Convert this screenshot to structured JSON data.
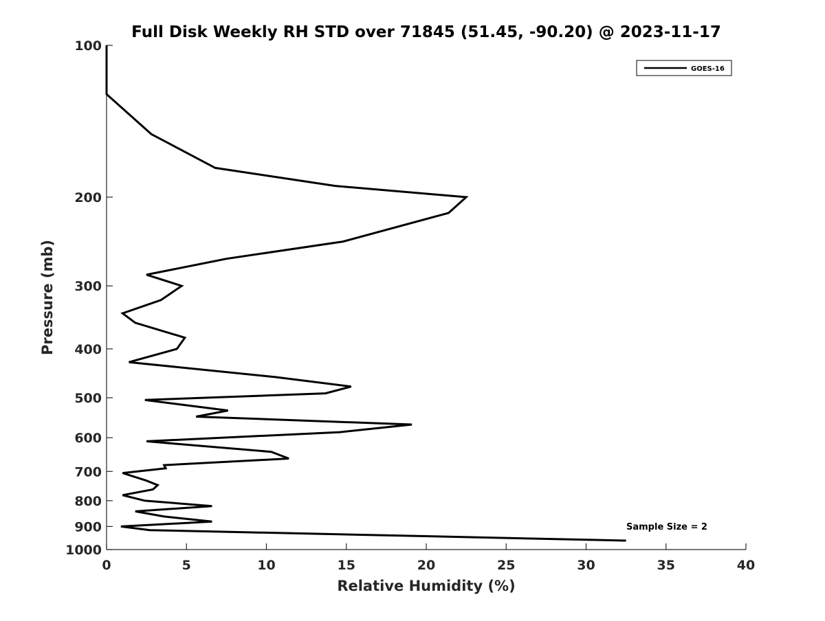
{
  "chart_data": {
    "type": "line",
    "title": "Full Disk Weekly RH STD over 71845 (51.45, -90.20) @ 2023-11-17",
    "xlabel": "Relative Humidity (%)",
    "ylabel": "Pressure (mb)",
    "xlim": [
      0,
      40
    ],
    "ylim": [
      100,
      1000
    ],
    "yscale": "log",
    "yreversed": true,
    "grid": false,
    "legend_position": "top-right",
    "xticks": [
      0,
      5,
      10,
      15,
      20,
      25,
      30,
      35,
      40
    ],
    "yticks": [
      100,
      200,
      300,
      400,
      500,
      600,
      700,
      800,
      900,
      1000
    ],
    "series": [
      {
        "name": "GOES-16",
        "color": "#000000",
        "x": [
          0,
          0,
          2.8,
          6.8,
          14.3,
          22.5,
          21.4,
          14.8,
          7.5,
          2.5,
          4.7,
          3.4,
          1.0,
          1.8,
          4.9,
          4.4,
          1.4,
          10.6,
          15.3,
          13.7,
          2.4,
          7.6,
          5.6,
          19.1,
          14.6,
          2.5,
          10.3,
          11.4,
          3.6,
          3.7,
          1.0,
          2.5,
          3.2,
          2.9,
          1.0,
          2.4,
          6.6,
          1.8,
          3.6,
          6.6,
          0.9,
          2.7,
          32.5
        ],
        "y": [
          100,
          125,
          150,
          175,
          190,
          200,
          215,
          245,
          265,
          285,
          300,
          320,
          340,
          355,
          380,
          400,
          425,
          455,
          475,
          490,
          505,
          530,
          545,
          565,
          585,
          610,
          640,
          660,
          680,
          690,
          705,
          730,
          745,
          760,
          780,
          800,
          820,
          840,
          860,
          880,
          900,
          915,
          960
        ]
      }
    ],
    "annotations": [
      "Sample Size = 2"
    ]
  }
}
